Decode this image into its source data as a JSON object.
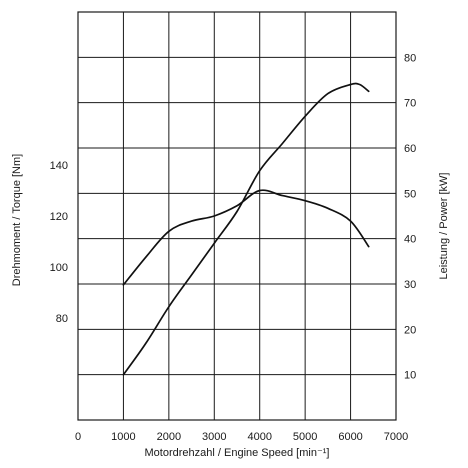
{
  "chart_data": {
    "type": "line",
    "xlabel": "Motordrehzahl / Engine Speed [min⁻¹]",
    "ylabel_left": "Drehmoment / Torque [Nm]",
    "ylabel_right": "Leistung / Power [kW]",
    "xlim": [
      0,
      7000
    ],
    "ylim_left": [
      40,
      200
    ],
    "ylim_right": [
      0,
      90
    ],
    "grid": true,
    "x_ticks": [
      "0",
      "1000",
      "2000",
      "3000",
      "4000",
      "5000",
      "6000",
      "7000"
    ],
    "y_left_ticks": [
      "80",
      "100",
      "120",
      "140"
    ],
    "y_right_ticks": [
      "10",
      "20",
      "30",
      "40",
      "50",
      "60",
      "70",
      "80"
    ],
    "series": [
      {
        "axis": "left",
        "x": [
          1000,
          1500,
          2000,
          2500,
          3000,
          3500,
          4000,
          4500,
          5000,
          5500,
          6000,
          6400
        ],
        "y": [
          93,
          104,
          114,
          118,
          120,
          124,
          130,
          128,
          126,
          123,
          118,
          108
        ]
      },
      {
        "axis": "right",
        "x": [
          1000,
          1500,
          2000,
          2500,
          3000,
          3500,
          4000,
          4500,
          5000,
          5500,
          6000,
          6200,
          6400
        ],
        "y": [
          10,
          17,
          25,
          32,
          39,
          46,
          55,
          61,
          67,
          72,
          74,
          74,
          72.5
        ]
      }
    ]
  }
}
